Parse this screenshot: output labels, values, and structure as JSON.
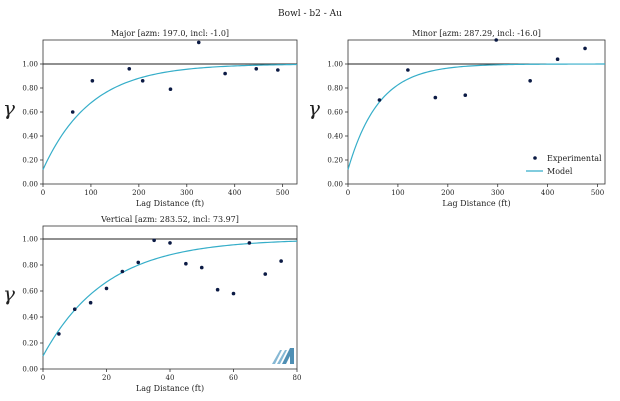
{
  "figure": {
    "title": "Bowl - b2 - Au",
    "colors": {
      "model": "#36aec9",
      "points": "#0b1a44",
      "sill": "#222222",
      "axis": "#333333",
      "logo": "#86b8d4"
    }
  },
  "chart_data": [
    {
      "type": "scatter",
      "title": "Major [azm: 197.0, incl: -1.0]",
      "xlabel": "Lag Distance (ft)",
      "ylabel": "γ",
      "xlim": [
        0,
        530
      ],
      "ylim": [
        0,
        1.2
      ],
      "xticks": [
        0,
        100,
        200,
        300,
        400,
        500
      ],
      "yticks": [
        0.0,
        0.2,
        0.4,
        0.6,
        0.8,
        1.0
      ],
      "sill": 1.0,
      "grid": false,
      "model": {
        "nugget": 0.12,
        "sill": 1.0,
        "range": 300
      },
      "series": [
        {
          "name": "Experimental",
          "x": [
            62,
            103,
            180,
            208,
            266,
            325,
            380,
            445,
            490
          ],
          "y": [
            0.6,
            0.86,
            0.96,
            0.86,
            0.79,
            1.18,
            0.92,
            0.96,
            0.95
          ]
        }
      ]
    },
    {
      "type": "scatter",
      "title": "Minor [azm: 287.29, incl: -16.0]",
      "xlabel": "Lag Distance (ft)",
      "ylabel": "γ",
      "xlim": [
        0,
        515
      ],
      "ylim": [
        0,
        1.2
      ],
      "xticks": [
        0,
        100,
        200,
        300,
        400,
        500
      ],
      "yticks": [
        0.0,
        0.2,
        0.4,
        0.6,
        0.8,
        1.0
      ],
      "sill": 1.0,
      "grid": false,
      "legend": {
        "position": "bottom-right",
        "entries": [
          "Experimental",
          "Model"
        ]
      },
      "model": {
        "nugget": 0.12,
        "sill": 1.0,
        "range": 185
      },
      "series": [
        {
          "name": "Experimental",
          "x": [
            63,
            120,
            175,
            235,
            297,
            365,
            420,
            475
          ],
          "y": [
            0.7,
            0.95,
            0.72,
            0.74,
            1.2,
            0.86,
            1.04,
            1.13
          ]
        }
      ]
    },
    {
      "type": "scatter",
      "title": "Vertical [azm: 283.52, incl: 73.97]",
      "xlabel": "Lag Distance (ft)",
      "ylabel": "γ",
      "xlim": [
        0,
        80
      ],
      "ylim": [
        0,
        1.1
      ],
      "xticks": [
        0,
        20,
        40,
        60,
        80
      ],
      "yticks": [
        0.0,
        0.2,
        0.4,
        0.6,
        0.8,
        1.0
      ],
      "sill": 1.0,
      "grid": false,
      "model": {
        "nugget": 0.1,
        "sill": 1.0,
        "range": 60
      },
      "series": [
        {
          "name": "Experimental",
          "x": [
            5,
            10,
            15,
            20,
            25,
            30,
            35,
            40,
            45,
            50,
            55,
            60,
            65,
            70,
            75
          ],
          "y": [
            0.27,
            0.46,
            0.51,
            0.62,
            0.75,
            0.82,
            0.99,
            0.97,
            0.81,
            0.78,
            0.61,
            0.58,
            0.97,
            0.73,
            0.83
          ]
        }
      ]
    }
  ]
}
